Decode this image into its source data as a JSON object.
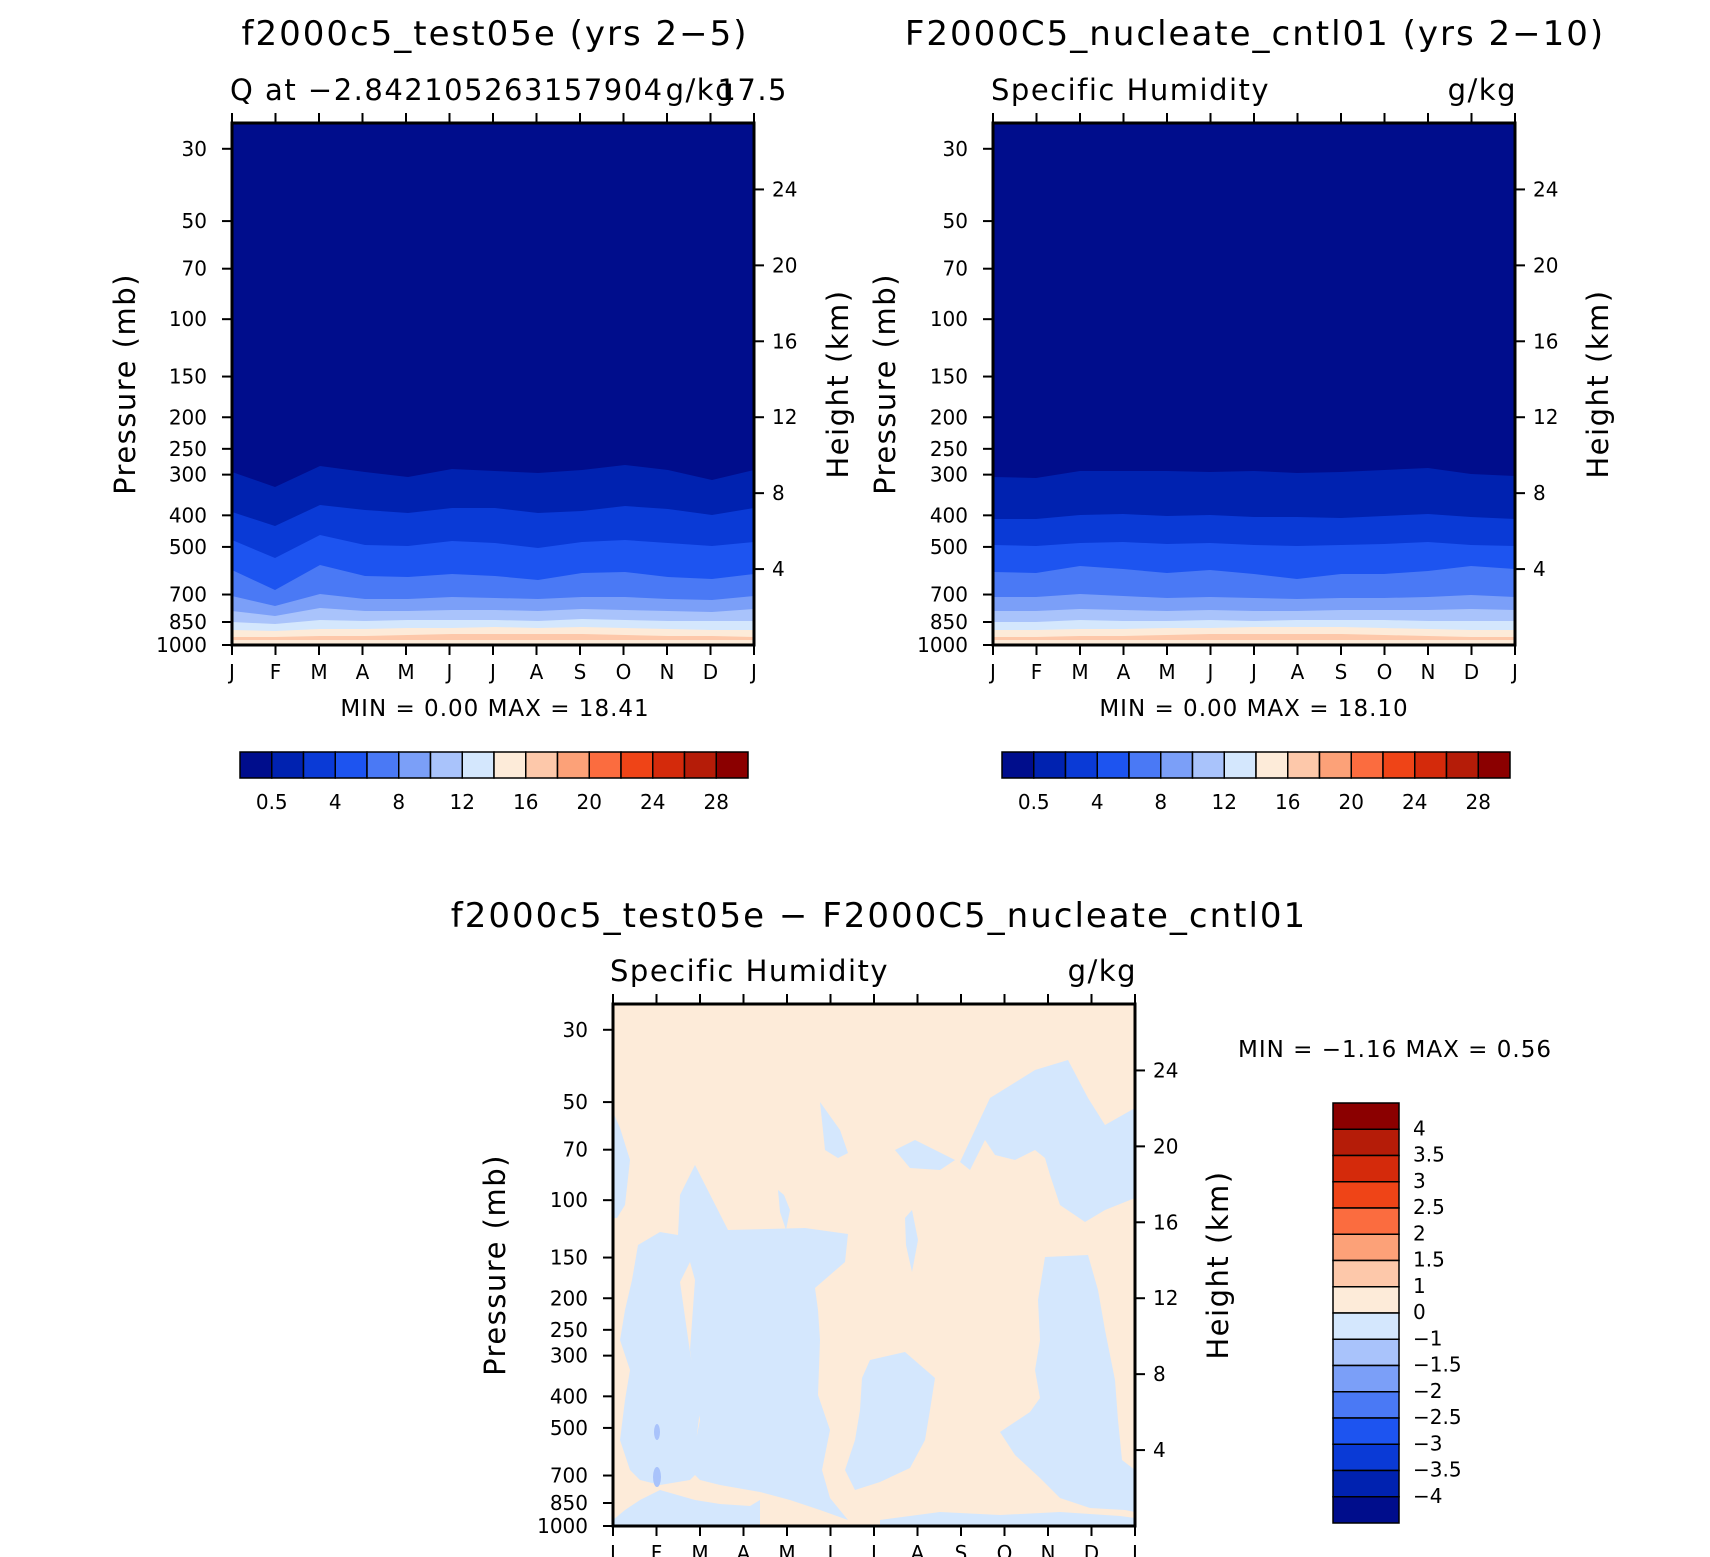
{
  "chart_data": [
    {
      "type": "heatmap",
      "title": "f2000c5_test05e (yrs 2−5)",
      "left_subtitle": "Q at −2.842105263157904",
      "right_subtitle": "g/kg",
      "overlap_subtitle": "17.5",
      "ylabel": "Pressure (mb)",
      "ylabel_right": "Height (km)",
      "yticks": [
        "30",
        "50",
        "70",
        "100",
        "150",
        "200",
        "250",
        "300",
        "400",
        "500",
        "700",
        "850",
        "1000"
      ],
      "yticks_right": [
        "24",
        "20",
        "16",
        "12",
        "8",
        "4"
      ],
      "xticks": [
        "J",
        "F",
        "M",
        "A",
        "M",
        "J",
        "J",
        "A",
        "S",
        "O",
        "N",
        "D",
        "J"
      ],
      "stats": "MIN =    0.00  MAX =   18.41",
      "colorbar_labels": [
        "0.5",
        "4",
        "8",
        "12",
        "16",
        "20",
        "24",
        "28"
      ],
      "contour_levels": [
        0.5,
        2,
        4,
        6,
        8,
        10,
        12,
        14,
        16,
        18,
        20,
        22,
        24,
        26,
        28
      ],
      "min": 0.0,
      "max": 18.41
    },
    {
      "type": "heatmap",
      "title": "F2000C5_nucleate_cntl01 (yrs 2−10)",
      "left_subtitle": "Specific Humidity",
      "right_subtitle": "g/kg",
      "ylabel": "Pressure (mb)",
      "ylabel_right": "Height (km)",
      "yticks": [
        "30",
        "50",
        "70",
        "100",
        "150",
        "200",
        "250",
        "300",
        "400",
        "500",
        "700",
        "850",
        "1000"
      ],
      "yticks_right": [
        "24",
        "20",
        "16",
        "12",
        "8",
        "4"
      ],
      "xticks": [
        "J",
        "F",
        "M",
        "A",
        "M",
        "J",
        "J",
        "A",
        "S",
        "O",
        "N",
        "D",
        "J"
      ],
      "stats": "MIN =    0.00  MAX =   18.10",
      "colorbar_labels": [
        "0.5",
        "4",
        "8",
        "12",
        "16",
        "20",
        "24",
        "28"
      ],
      "contour_levels": [
        0.5,
        2,
        4,
        6,
        8,
        10,
        12,
        14,
        16,
        18,
        20,
        22,
        24,
        26,
        28
      ],
      "min": 0.0,
      "max": 18.1
    },
    {
      "type": "heatmap",
      "title": "f2000c5_test05e − F2000C5_nucleate_cntl01",
      "left_subtitle": "Specific Humidity",
      "right_subtitle": "g/kg",
      "ylabel": "Pressure (mb)",
      "ylabel_right": "Height (km)",
      "yticks": [
        "30",
        "50",
        "70",
        "100",
        "150",
        "200",
        "250",
        "300",
        "400",
        "500",
        "700",
        "850",
        "1000"
      ],
      "yticks_right": [
        "24",
        "20",
        "16",
        "12",
        "8",
        "4"
      ],
      "xticks": [
        "J",
        "F",
        "M",
        "A",
        "M",
        "J",
        "J",
        "A",
        "S",
        "O",
        "N",
        "D",
        "J"
      ],
      "stats": "MIN =    −1.16  MAX =    0.56",
      "colorbar_labels": [
        "4",
        "3.5",
        "3",
        "2.5",
        "2",
        "1.5",
        "1",
        "0",
        "−1",
        "−1.5",
        "−2",
        "−2.5",
        "−3",
        "−3.5",
        "−4"
      ],
      "contour_levels": [
        -4,
        -3.5,
        -3,
        -2.5,
        -2,
        -1.5,
        -1,
        0,
        1,
        1.5,
        2,
        2.5,
        3,
        3.5,
        4
      ],
      "min": -1.16,
      "max": 0.56
    }
  ],
  "colors": {
    "q_scale": [
      "#000d8c",
      "#0022b0",
      "#0a3ad6",
      "#1d54f0",
      "#4a79f5",
      "#7b9ff8",
      "#a9c3fb",
      "#d4e7fd",
      "#fdebd9",
      "#fdc8aa",
      "#fca178",
      "#fb6c3f",
      "#ef4417",
      "#d42a0b",
      "#b51c08",
      "#8b0000"
    ],
    "diff_scale": [
      "#000d8c",
      "#0022b0",
      "#0a3ad6",
      "#1d54f0",
      "#4a79f5",
      "#7b9ff8",
      "#a9c3fb",
      "#d4e7fd",
      "#fdebd9",
      "#fdc8aa",
      "#fca178",
      "#fb6c3f",
      "#ef4417",
      "#d42a0b",
      "#b51c08",
      "#8b0000"
    ]
  }
}
